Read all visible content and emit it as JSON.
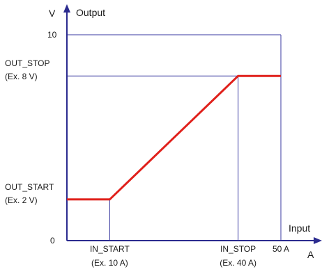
{
  "chart_data": {
    "type": "line",
    "y_axis": {
      "unit": "V",
      "title": "Output",
      "range": [
        0,
        10
      ]
    },
    "x_axis": {
      "unit": "A",
      "title": "Input",
      "range": [
        0,
        50
      ]
    },
    "series": [
      {
        "x": [
          0,
          10,
          40,
          50
        ],
        "y": [
          2,
          2,
          8,
          8
        ],
        "color": "#e0201b"
      }
    ],
    "y_ticks": [
      {
        "value": 0,
        "lines": [
          "0"
        ]
      },
      {
        "value": 2,
        "lines": [
          "OUT_START",
          "(Ex. 2 V)"
        ]
      },
      {
        "value": 8,
        "lines": [
          "OUT_STOP",
          "(Ex. 8 V)"
        ]
      },
      {
        "value": 10,
        "lines": [
          "10"
        ]
      }
    ],
    "x_ticks": [
      {
        "value": 10,
        "lines": [
          "IN_START",
          "(Ex. 10 A)"
        ]
      },
      {
        "value": 40,
        "lines": [
          "IN_STOP",
          "(Ex. 40 A)"
        ]
      },
      {
        "value": 50,
        "lines": [
          "50 A"
        ]
      }
    ],
    "colors": {
      "axis": "#2b2b8f",
      "guide": "#3a3aa0",
      "line": "#e0201b"
    }
  }
}
